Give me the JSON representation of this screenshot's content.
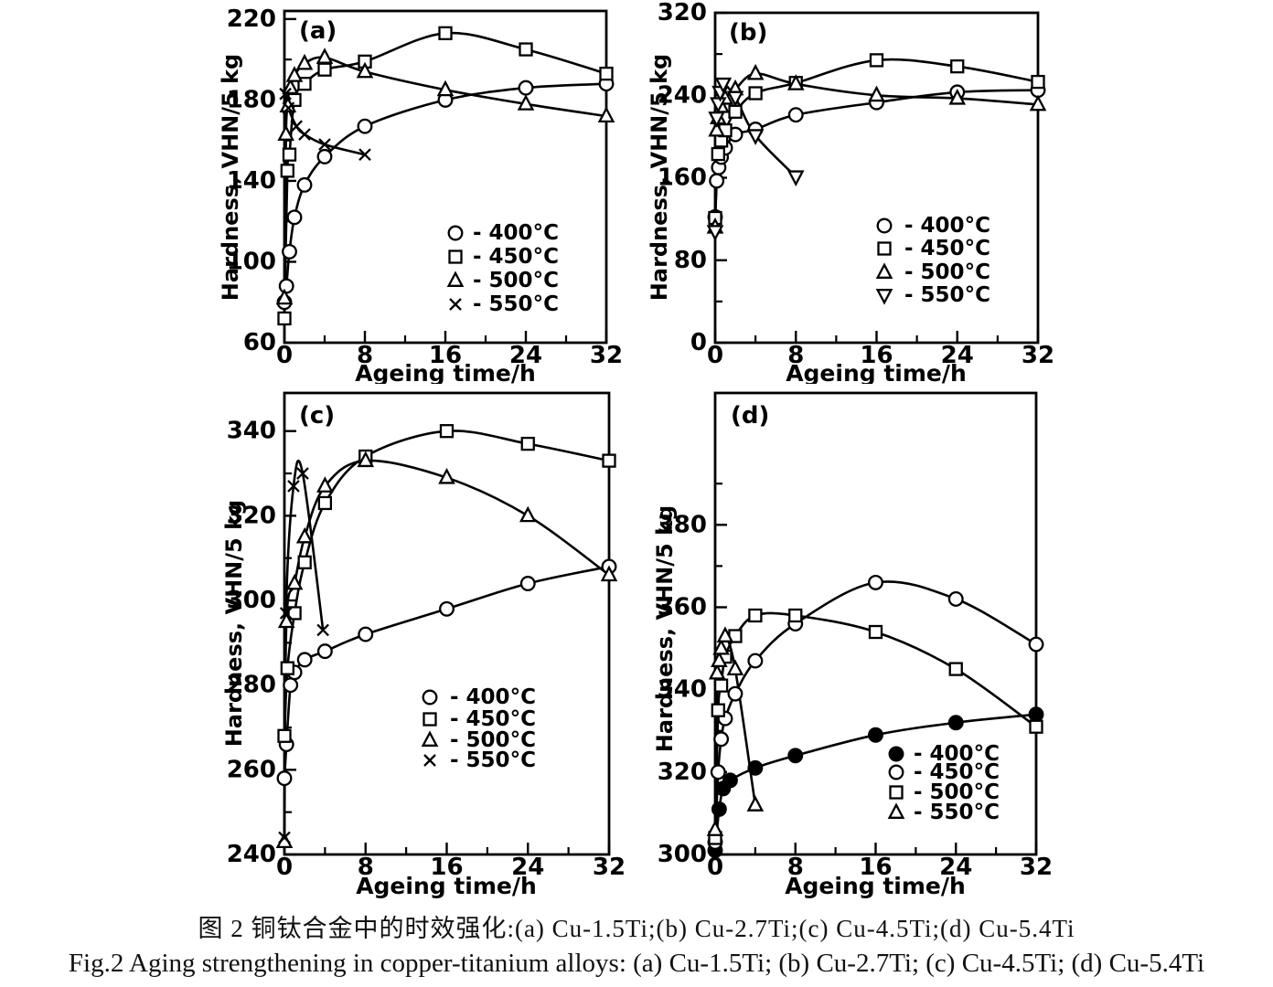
{
  "figure": {
    "caption_zh": "图 2  铜钛合金中的时效强化:(a) Cu-1.5Ti;(b) Cu-2.7Ti;(c) Cu-4.5Ti;(d) Cu-5.4Ti",
    "caption_en": "Fig.2 Aging strengthening in copper-titanium alloys: (a) Cu-1.5Ti; (b) Cu-2.7Ti; (c) Cu-4.5Ti; (d) Cu-5.4Ti"
  },
  "colors": {
    "ink": "#000000",
    "paper": "#ffffff"
  },
  "chart_data": [
    {
      "panel": "a",
      "panel_label": "(a)",
      "type": "line",
      "x_axis": {
        "title": "Ageing time/h",
        "range": [
          0,
          32
        ],
        "major_ticks": [
          0,
          8,
          16,
          24,
          32
        ],
        "minor_ticks": [
          4,
          12,
          20,
          28
        ]
      },
      "y_axis": {
        "title": "Hardness, VHN/5 kg",
        "range": [
          60,
          224
        ],
        "major_ticks": [
          60,
          100,
          140,
          180,
          220
        ],
        "minor_ticks": [
          80,
          120,
          160,
          200
        ]
      },
      "legend_position": "lower-right",
      "series": [
        {
          "label": "400°C",
          "legend_text": "- 400°C",
          "marker": "circle",
          "points": [
            [
              0,
              80
            ],
            [
              0.2,
              88
            ],
            [
              0.5,
              105
            ],
            [
              1,
              122
            ],
            [
              2,
              138
            ],
            [
              4,
              152
            ],
            [
              8,
              167
            ],
            [
              16,
              180
            ],
            [
              24,
              186
            ],
            [
              32,
              188
            ]
          ]
        },
        {
          "label": "450°C",
          "legend_text": "- 450°C",
          "marker": "square",
          "points": [
            [
              0,
              72
            ],
            [
              0.3,
              145
            ],
            [
              0.5,
              153
            ],
            [
              1,
              180
            ],
            [
              2,
              188
            ],
            [
              4,
              195
            ],
            [
              8,
              199
            ],
            [
              16,
              213
            ],
            [
              24,
              205
            ],
            [
              32,
              193
            ]
          ]
        },
        {
          "label": "500°C",
          "legend_text": "- 500°C",
          "marker": "triangle-up",
          "points": [
            [
              0,
              82
            ],
            [
              0.15,
              163
            ],
            [
              0.35,
              177
            ],
            [
              0.6,
              186
            ],
            [
              1,
              192
            ],
            [
              2,
              198
            ],
            [
              4,
              201
            ],
            [
              8,
              194
            ],
            [
              16,
              185
            ],
            [
              24,
              178
            ],
            [
              32,
              172
            ]
          ]
        },
        {
          "label": "550°C",
          "legend_text": "- 550°C",
          "marker": "x",
          "points": [
            [
              0.1,
              183
            ],
            [
              0.4,
              176
            ],
            [
              1.2,
              167
            ],
            [
              2,
              163
            ],
            [
              4,
              158
            ],
            [
              8,
              153
            ]
          ]
        }
      ]
    },
    {
      "panel": "b",
      "panel_label": "(b)",
      "type": "line",
      "x_axis": {
        "title": "Ageing time/h",
        "range": [
          0,
          32
        ],
        "major_ticks": [
          0,
          8,
          16,
          24,
          32
        ],
        "minor_ticks": [
          4,
          12,
          20,
          28
        ]
      },
      "y_axis": {
        "title": "Hardness, VHN/5 kg",
        "range": [
          0,
          320
        ],
        "major_ticks": [
          0,
          80,
          160,
          240,
          320
        ],
        "minor_ticks": [
          40,
          120,
          200,
          280
        ]
      },
      "legend_position": "lower-right",
      "series": [
        {
          "label": "400°C",
          "legend_text": "- 400°C",
          "marker": "circle",
          "points": [
            [
              0,
              122
            ],
            [
              0.15,
              157
            ],
            [
              0.35,
              170
            ],
            [
              0.6,
              180
            ],
            [
              1,
              189
            ],
            [
              2,
              202
            ],
            [
              4,
              207
            ],
            [
              8,
              221
            ],
            [
              16,
              233
            ],
            [
              24,
              243
            ],
            [
              32,
              245
            ]
          ]
        },
        {
          "label": "450°C",
          "legend_text": "- 450°C",
          "marker": "square",
          "points": [
            [
              0,
              121
            ],
            [
              0.3,
              183
            ],
            [
              0.6,
              196
            ],
            [
              1,
              206
            ],
            [
              2,
              224
            ],
            [
              4,
              242
            ],
            [
              8,
              252
            ],
            [
              16,
              274
            ],
            [
              24,
              268
            ],
            [
              32,
              253
            ]
          ]
        },
        {
          "label": "500°C",
          "legend_text": "- 500°C",
          "marker": "triangle-up",
          "points": [
            [
              0,
              112
            ],
            [
              0.15,
              206
            ],
            [
              0.3,
              218
            ],
            [
              0.6,
              229
            ],
            [
              1,
              237
            ],
            [
              2,
              246
            ],
            [
              4,
              261
            ],
            [
              8,
              251
            ],
            [
              16,
              240
            ],
            [
              24,
              237
            ],
            [
              32,
              231
            ]
          ]
        },
        {
          "label": "550°C",
          "legend_text": "- 550°C",
          "marker": "triangle-down",
          "points": [
            [
              0,
              108
            ],
            [
              0.15,
              218
            ],
            [
              0.3,
              232
            ],
            [
              0.5,
              243
            ],
            [
              0.8,
              251
            ],
            [
              2,
              238
            ],
            [
              4,
              201
            ],
            [
              8,
              161
            ]
          ]
        }
      ]
    },
    {
      "panel": "c",
      "panel_label": "(c)",
      "type": "line",
      "x_axis": {
        "title": "Ageing time/h",
        "range": [
          0,
          32
        ],
        "major_ticks": [
          0,
          8,
          16,
          24,
          32
        ],
        "minor_ticks": [
          4,
          12,
          20,
          28
        ]
      },
      "y_axis": {
        "title": "Hardness, VHN/5 kg",
        "range": [
          240,
          349
        ],
        "major_ticks": [
          240,
          260,
          280,
          300,
          320,
          340
        ],
        "minor_ticks": [
          250,
          270,
          290,
          310,
          330
        ]
      },
      "legend_position": "lower-right",
      "series": [
        {
          "label": "400°C",
          "legend_text": "- 400°C",
          "marker": "circle",
          "points": [
            [
              0,
              258
            ],
            [
              0.2,
              266
            ],
            [
              0.6,
              280
            ],
            [
              1,
              283
            ],
            [
              2,
              286
            ],
            [
              4,
              288
            ],
            [
              8,
              292
            ],
            [
              16,
              298
            ],
            [
              24,
              304
            ],
            [
              32,
              308
            ]
          ]
        },
        {
          "label": "450°C",
          "legend_text": "- 450°C",
          "marker": "square",
          "points": [
            [
              0,
              268
            ],
            [
              0.3,
              284
            ],
            [
              1,
              297
            ],
            [
              2,
              309
            ],
            [
              4,
              323
            ],
            [
              8,
              334
            ],
            [
              16,
              340
            ],
            [
              24,
              337
            ],
            [
              32,
              333
            ]
          ]
        },
        {
          "label": "500°C",
          "legend_text": "- 500°C",
          "marker": "triangle-up",
          "points": [
            [
              0,
              243
            ],
            [
              0.2,
              295
            ],
            [
              1,
              304
            ],
            [
              2,
              315
            ],
            [
              4,
              327
            ],
            [
              8,
              333
            ],
            [
              16,
              329
            ],
            [
              24,
              320
            ],
            [
              32,
              306
            ]
          ]
        },
        {
          "label": "550°C",
          "legend_text": "- 550°C",
          "marker": "x",
          "points": [
            [
              0,
              244
            ],
            [
              0.15,
              297
            ],
            [
              0.9,
              327
            ],
            [
              1.8,
              330
            ],
            [
              3.8,
              293
            ]
          ]
        }
      ]
    },
    {
      "panel": "d",
      "panel_label": "(d)",
      "type": "line",
      "x_axis": {
        "title": "Ageing time/h",
        "range": [
          0,
          32
        ],
        "major_ticks": [
          0,
          8,
          16,
          24,
          32
        ],
        "minor_ticks": [
          4,
          12,
          20,
          28
        ]
      },
      "y_axis": {
        "title": "Hardness, VHN/5 kg",
        "range": [
          300,
          412
        ],
        "major_ticks": [
          300,
          320,
          340,
          360,
          380
        ],
        "minor_ticks": [
          310,
          330,
          350,
          370,
          390
        ]
      },
      "legend_position": "lower-right",
      "series": [
        {
          "label": "400°C",
          "legend_text": "- 400°C",
          "marker": "circle-filled",
          "points": [
            [
              0,
              301
            ],
            [
              0.4,
              311
            ],
            [
              0.8,
              316
            ],
            [
              1.5,
              318
            ],
            [
              4,
              321
            ],
            [
              8,
              324
            ],
            [
              16,
              329
            ],
            [
              24,
              332
            ],
            [
              32,
              334
            ]
          ]
        },
        {
          "label": "450°C",
          "legend_text": "- 450°C",
          "marker": "circle",
          "points": [
            [
              0,
              303
            ],
            [
              0.3,
              320
            ],
            [
              0.6,
              328
            ],
            [
              1,
              333
            ],
            [
              2,
              339
            ],
            [
              4,
              347
            ],
            [
              8,
              356
            ],
            [
              16,
              366
            ],
            [
              24,
              362
            ],
            [
              32,
              351
            ]
          ]
        },
        {
          "label": "500°C",
          "legend_text": "- 500°C",
          "marker": "square",
          "points": [
            [
              0,
              304
            ],
            [
              0.3,
              335
            ],
            [
              0.6,
              341
            ],
            [
              1,
              348
            ],
            [
              2,
              353
            ],
            [
              4,
              358
            ],
            [
              8,
              358
            ],
            [
              16,
              354
            ],
            [
              24,
              345
            ],
            [
              32,
              331
            ]
          ]
        },
        {
          "label": "550°C",
          "legend_text": "- 550°C",
          "marker": "triangle-up",
          "points": [
            [
              0,
              306
            ],
            [
              0.2,
              344
            ],
            [
              0.4,
              347
            ],
            [
              0.6,
              350
            ],
            [
              1,
              353
            ],
            [
              2,
              345
            ],
            [
              4,
              312
            ]
          ]
        }
      ]
    }
  ]
}
